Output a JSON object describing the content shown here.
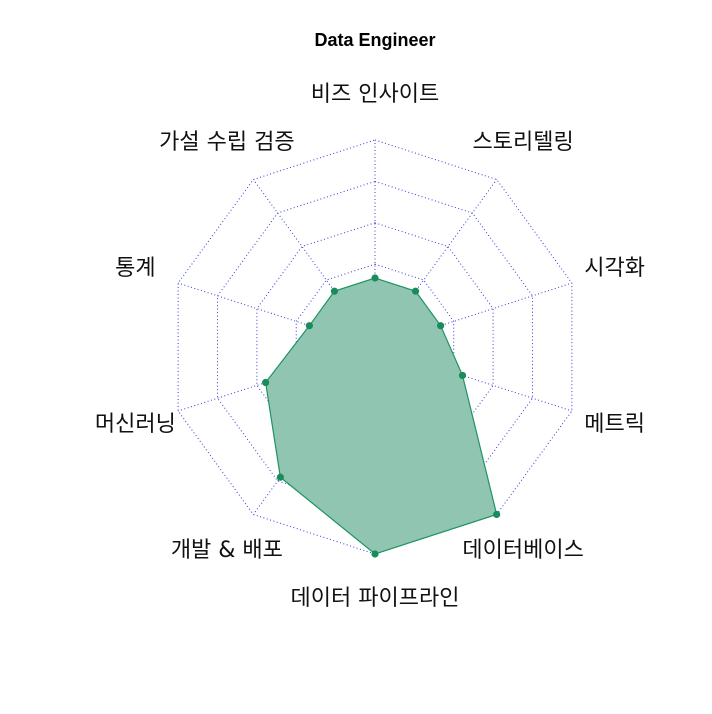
{
  "chart_data": {
    "type": "radar",
    "title": "Data Engineer",
    "axes": [
      "비즈 인사이트",
      "스토리텔링",
      "시각화",
      "메트릭",
      "데이터베이스",
      "데이터 파이프라인",
      "개발 & 배포",
      "머신러닝",
      "통계",
      "가설 수립 검증"
    ],
    "series": [
      {
        "values": [
          1,
          1,
          1,
          2,
          7,
          7,
          5,
          3,
          1,
          1
        ]
      }
    ],
    "rlim": [
      -2,
      7
    ],
    "rings": 5,
    "grid": true,
    "colors": {
      "fill": "#8fc5b1",
      "stroke": "#1e9463",
      "point": "#1a8c5c",
      "grid": "#3a3ad6"
    }
  }
}
